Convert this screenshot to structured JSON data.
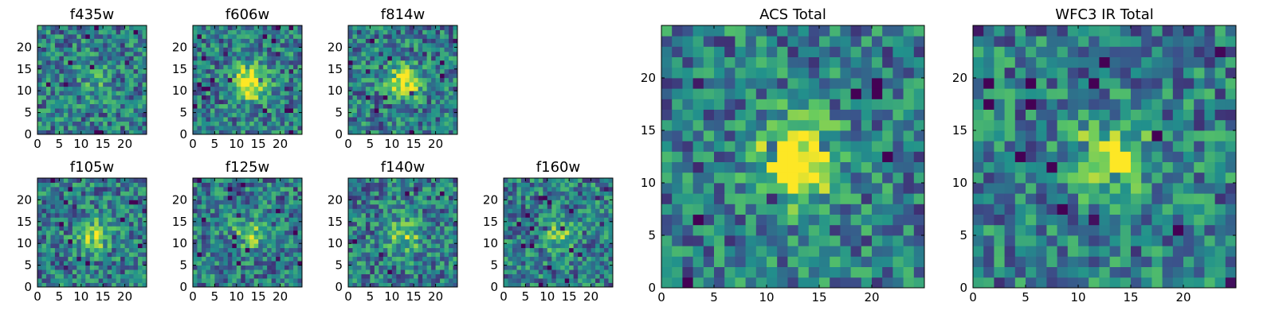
{
  "chart_data": [
    {
      "type": "heatmap",
      "title": "f435w",
      "xticks": [
        0,
        5,
        10,
        15,
        20
      ],
      "yticks": [
        0,
        5,
        10,
        15,
        20
      ],
      "xlim": [
        0,
        25
      ],
      "ylim": [
        0,
        25
      ],
      "grid_size": 25,
      "signal": 0.2
    },
    {
      "type": "heatmap",
      "title": "f606w",
      "xticks": [
        0,
        5,
        10,
        15,
        20
      ],
      "yticks": [
        0,
        5,
        10,
        15,
        20
      ],
      "xlim": [
        0,
        25
      ],
      "ylim": [
        0,
        25
      ],
      "grid_size": 25,
      "signal": 0.75
    },
    {
      "type": "heatmap",
      "title": "f814w",
      "xticks": [
        0,
        5,
        10,
        15,
        20
      ],
      "yticks": [
        0,
        5,
        10,
        15,
        20
      ],
      "xlim": [
        0,
        25
      ],
      "ylim": [
        0,
        25
      ],
      "grid_size": 25,
      "signal": 0.65
    },
    {
      "type": "heatmap",
      "title": "f105w",
      "xticks": [
        0,
        5,
        10,
        15,
        20
      ],
      "yticks": [
        0,
        5,
        10,
        15,
        20
      ],
      "xlim": [
        0,
        25
      ],
      "ylim": [
        0,
        25
      ],
      "grid_size": 25,
      "signal": 0.45
    },
    {
      "type": "heatmap",
      "title": "f125w",
      "xticks": [
        0,
        5,
        10,
        15,
        20
      ],
      "yticks": [
        0,
        5,
        10,
        15,
        20
      ],
      "xlim": [
        0,
        25
      ],
      "ylim": [
        0,
        25
      ],
      "grid_size": 25,
      "signal": 0.35
    },
    {
      "type": "heatmap",
      "title": "f140w",
      "xticks": [
        0,
        5,
        10,
        15,
        20
      ],
      "yticks": [
        0,
        5,
        10,
        15,
        20
      ],
      "xlim": [
        0,
        25
      ],
      "ylim": [
        0,
        25
      ],
      "grid_size": 25,
      "signal": 0.4
    },
    {
      "type": "heatmap",
      "title": "f160w",
      "xticks": [
        0,
        5,
        10,
        15,
        20
      ],
      "yticks": [
        0,
        5,
        10,
        15,
        20
      ],
      "xlim": [
        0,
        25
      ],
      "ylim": [
        0,
        25
      ],
      "grid_size": 25,
      "signal": 0.35
    },
    {
      "type": "heatmap",
      "title": "ACS Total",
      "xticks": [
        0,
        5,
        10,
        15,
        20
      ],
      "yticks": [
        0,
        5,
        10,
        15,
        20
      ],
      "xlim": [
        0,
        25
      ],
      "ylim": [
        0,
        25
      ],
      "grid_size": 25,
      "signal": 0.85
    },
    {
      "type": "heatmap",
      "title": "WFC3 IR Total",
      "xticks": [
        0,
        5,
        10,
        15,
        20
      ],
      "yticks": [
        0,
        5,
        10,
        15,
        20
      ],
      "xlim": [
        0,
        25
      ],
      "ylim": [
        0,
        25
      ],
      "grid_size": 25,
      "signal": 0.6
    }
  ],
  "colormap": [
    "#440154",
    "#3b528b",
    "#21918c",
    "#5ec962",
    "#fde725"
  ]
}
